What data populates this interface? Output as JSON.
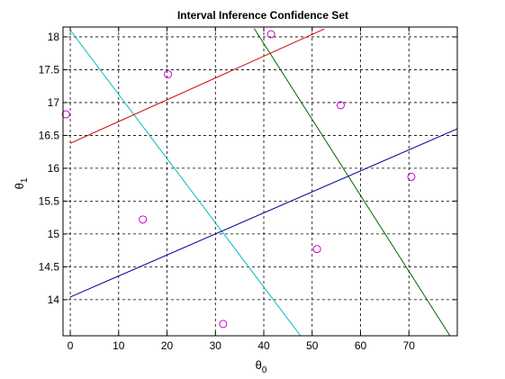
{
  "chart_data": {
    "type": "line",
    "title": "Interval Inference Confidence Set",
    "xlabel": "θ",
    "xlabel_sub": "0",
    "ylabel": "θ",
    "ylabel_sub": "1",
    "xlim": [
      -1.5,
      80
    ],
    "ylim": [
      13.45,
      18.15
    ],
    "xticks": [
      0,
      10,
      20,
      30,
      40,
      50,
      60,
      70
    ],
    "yticks": [
      14,
      14.5,
      15,
      15.5,
      16,
      16.5,
      17,
      17.5,
      18
    ],
    "ytick_labels": [
      "14",
      "14.5",
      "15",
      "15.5",
      "16",
      "16.5",
      "17",
      "17.5",
      "18"
    ],
    "grid": true,
    "lines": [
      {
        "color": "#00bfbf",
        "points": [
          [
            0,
            18.1
          ],
          [
            47.6,
            13.45
          ]
        ]
      },
      {
        "color": "#cc0000",
        "points": [
          [
            0,
            16.38
          ],
          [
            52.5,
            18.12
          ]
        ]
      },
      {
        "color": "#006600",
        "points": [
          [
            38,
            18.13
          ],
          [
            78.5,
            13.45
          ]
        ]
      },
      {
        "color": "#000099",
        "points": [
          [
            0,
            14.04
          ],
          [
            80,
            16.6
          ]
        ]
      }
    ],
    "points": {
      "marker": "circle",
      "color": "#cc00cc",
      "xy": [
        [
          -0.9,
          16.82
        ],
        [
          15,
          15.22
        ],
        [
          20.2,
          17.43
        ],
        [
          31.6,
          13.63
        ],
        [
          41.5,
          18.04
        ],
        [
          51,
          14.77
        ],
        [
          55.9,
          16.96
        ],
        [
          70.5,
          15.87
        ]
      ]
    }
  }
}
